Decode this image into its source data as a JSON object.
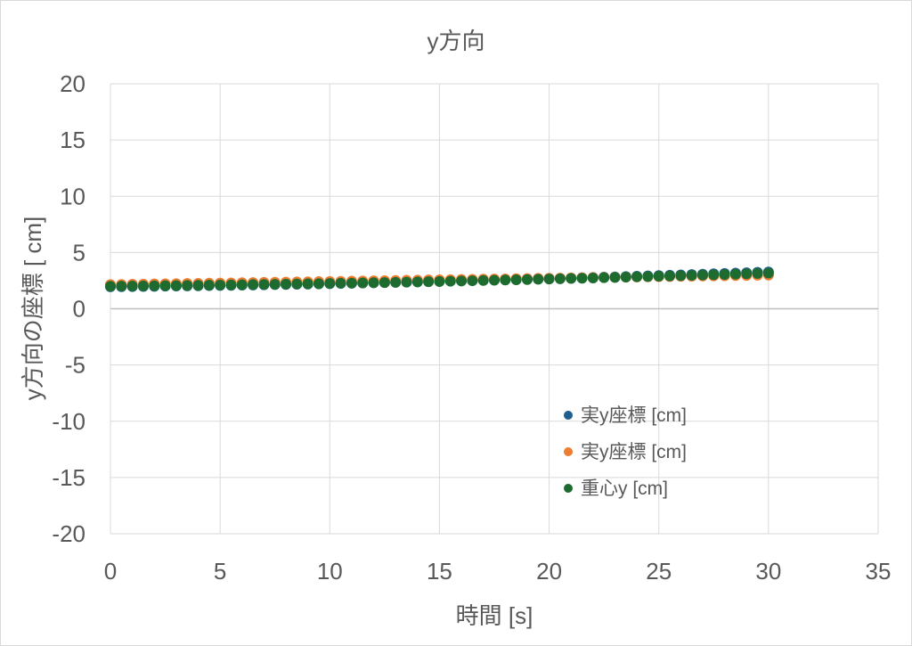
{
  "chart_data": {
    "type": "scatter",
    "title": "y方向",
    "xlabel": "時間 [s]",
    "ylabel": "y方向の座標 [ cm]",
    "xlim": [
      0,
      35
    ],
    "ylim": [
      -20,
      20
    ],
    "xticks": [
      0,
      5,
      10,
      15,
      20,
      25,
      30,
      35
    ],
    "yticks": [
      20,
      15,
      10,
      5,
      0,
      -5,
      -10,
      -15,
      -20
    ],
    "grid": true,
    "legend_position": "inside-lower-right",
    "x": [
      0,
      0.5,
      1,
      1.5,
      2,
      2.5,
      3,
      3.5,
      4,
      4.5,
      5,
      5.5,
      6,
      6.5,
      7,
      7.5,
      8,
      8.5,
      9,
      9.5,
      10,
      10.5,
      11,
      11.5,
      12,
      12.5,
      13,
      13.5,
      14,
      14.5,
      15,
      15.5,
      16,
      16.5,
      17,
      17.5,
      18,
      18.5,
      19,
      19.5,
      20,
      20.5,
      21,
      21.5,
      22,
      22.5,
      23,
      23.5,
      24,
      24.5,
      25,
      25.5,
      26,
      26.5,
      27,
      27.5,
      28,
      28.5,
      29,
      29.5,
      30
    ],
    "series": [
      {
        "name": "実y座標 [cm]",
        "color": "#1F5F8F",
        "values": [
          1.95,
          1.96,
          1.97,
          1.98,
          1.99,
          2.01,
          2.02,
          2.03,
          2.04,
          2.06,
          2.07,
          2.08,
          2.1,
          2.11,
          2.13,
          2.15,
          2.16,
          2.18,
          2.19,
          2.21,
          2.23,
          2.25,
          2.27,
          2.29,
          2.31,
          2.33,
          2.35,
          2.37,
          2.39,
          2.41,
          2.43,
          2.45,
          2.47,
          2.5,
          2.52,
          2.55,
          2.57,
          2.59,
          2.62,
          2.64,
          2.67,
          2.7,
          2.72,
          2.75,
          2.78,
          2.81,
          2.83,
          2.86,
          2.89,
          2.92,
          2.95,
          2.98,
          3.01,
          3.04,
          3.07,
          3.11,
          3.14,
          3.17,
          3.2,
          3.24,
          3.27
        ]
      },
      {
        "name": "実y座標 [cm]",
        "color": "#ED7D31",
        "values": [
          2.15,
          2.16,
          2.18,
          2.19,
          2.21,
          2.22,
          2.23,
          2.25,
          2.26,
          2.28,
          2.29,
          2.3,
          2.32,
          2.33,
          2.35,
          2.36,
          2.37,
          2.39,
          2.4,
          2.42,
          2.43,
          2.44,
          2.46,
          2.47,
          2.49,
          2.5,
          2.51,
          2.53,
          2.54,
          2.56,
          2.57,
          2.58,
          2.6,
          2.61,
          2.63,
          2.64,
          2.65,
          2.67,
          2.68,
          2.7,
          2.71,
          2.72,
          2.74,
          2.75,
          2.77,
          2.78,
          2.79,
          2.81,
          2.82,
          2.84,
          2.85,
          2.86,
          2.88,
          2.89,
          2.91,
          2.92,
          2.93,
          2.95,
          2.96,
          2.98,
          2.99
        ]
      },
      {
        "name": "重心y [cm]",
        "color": "#1E6B30",
        "values": [
          2.0,
          2.01,
          2.02,
          2.03,
          2.04,
          2.05,
          2.06,
          2.07,
          2.08,
          2.1,
          2.11,
          2.12,
          2.13,
          2.15,
          2.16,
          2.17,
          2.19,
          2.2,
          2.22,
          2.23,
          2.25,
          2.27,
          2.28,
          2.3,
          2.32,
          2.33,
          2.35,
          2.37,
          2.39,
          2.41,
          2.43,
          2.45,
          2.47,
          2.49,
          2.51,
          2.53,
          2.55,
          2.57,
          2.59,
          2.62,
          2.64,
          2.66,
          2.69,
          2.71,
          2.73,
          2.76,
          2.78,
          2.81,
          2.84,
          2.86,
          2.89,
          2.91,
          2.94,
          2.97,
          3.0,
          3.02,
          3.05,
          3.08,
          3.11,
          3.14,
          3.17
        ]
      }
    ]
  }
}
